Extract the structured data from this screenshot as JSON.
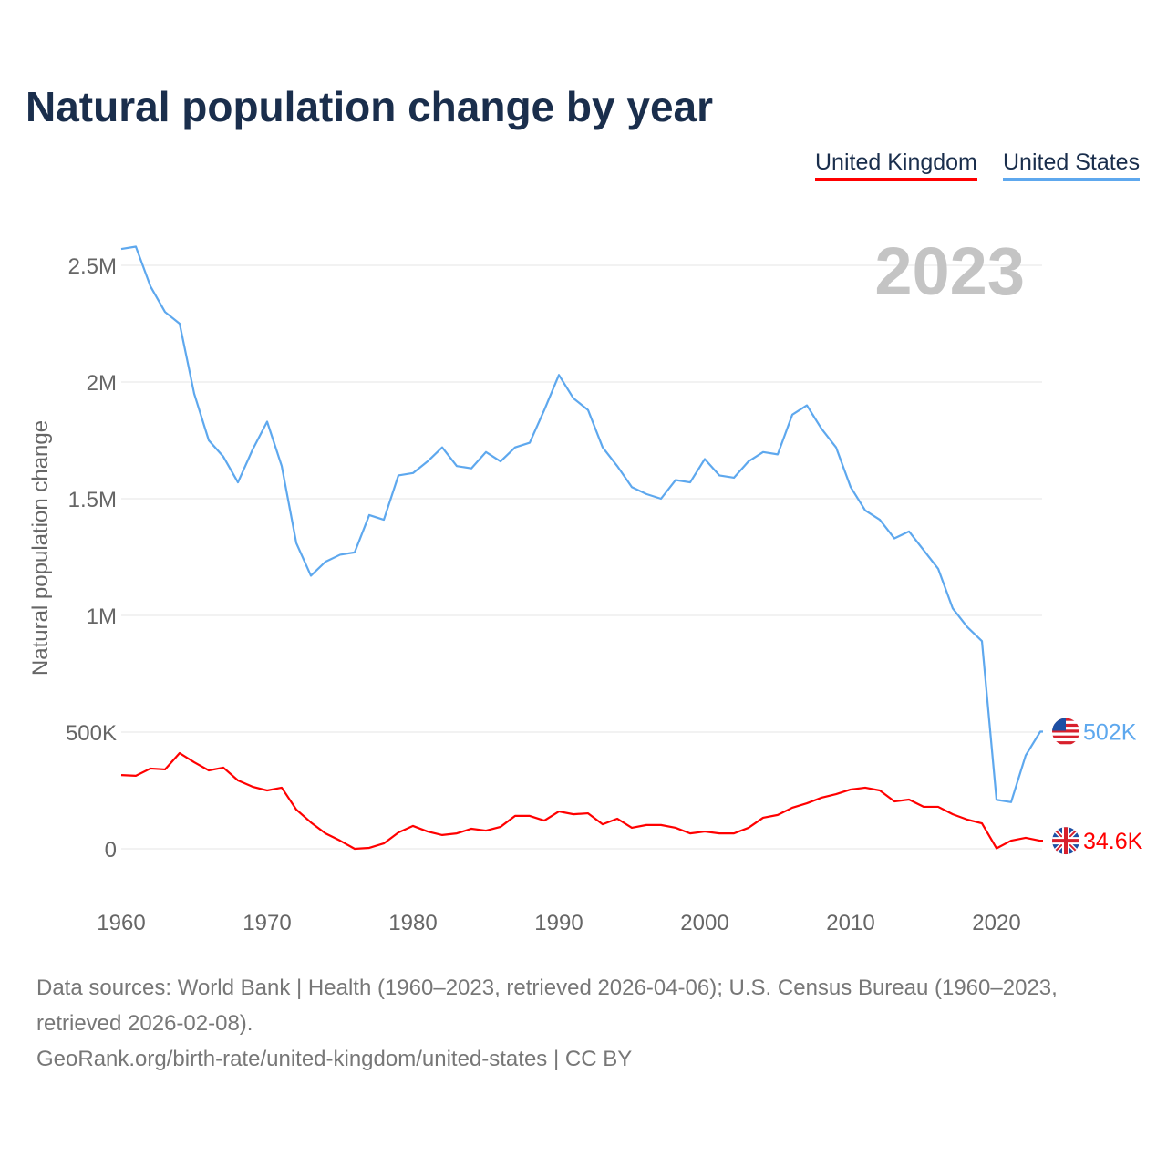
{
  "chart_data": {
    "type": "line",
    "title": "Natural population change by year",
    "xlabel": "",
    "ylabel": "Natural population change",
    "xlim": [
      1960,
      2023
    ],
    "ylim": [
      0,
      2600000
    ],
    "x_ticks": [
      1960,
      1970,
      1980,
      1990,
      2000,
      2010,
      2020
    ],
    "x_tick_labels": [
      "1960",
      "1970",
      "1980",
      "1990",
      "2000",
      "2010",
      "2020"
    ],
    "y_ticks": [
      0,
      500000,
      1000000,
      1500000,
      2000000,
      2500000
    ],
    "y_tick_labels": [
      "0",
      "500K",
      "1M",
      "1.5M",
      "2M",
      "2.5M"
    ],
    "grid": true,
    "legend_position": "top-right",
    "year_watermark": "2023",
    "x": [
      1960,
      1961,
      1962,
      1963,
      1964,
      1965,
      1966,
      1967,
      1968,
      1969,
      1970,
      1971,
      1972,
      1973,
      1974,
      1975,
      1976,
      1977,
      1978,
      1979,
      1980,
      1981,
      1982,
      1983,
      1984,
      1985,
      1986,
      1987,
      1988,
      1989,
      1990,
      1991,
      1992,
      1993,
      1994,
      1995,
      1996,
      1997,
      1998,
      1999,
      2000,
      2001,
      2002,
      2003,
      2004,
      2005,
      2006,
      2007,
      2008,
      2009,
      2010,
      2011,
      2012,
      2013,
      2014,
      2015,
      2016,
      2017,
      2018,
      2019,
      2020,
      2021,
      2022,
      2023
    ],
    "series": [
      {
        "name": "United Kingdom",
        "color": "#ff0000",
        "end_label": "34.6K",
        "flag": "uk-flag-icon",
        "values": [
          316000,
          313000,
          344000,
          340000,
          410000,
          371000,
          336000,
          348000,
          293000,
          266000,
          250000,
          262000,
          168000,
          113000,
          66000,
          35000,
          0,
          4000,
          23000,
          70000,
          98000,
          74000,
          59000,
          66000,
          86000,
          78000,
          94000,
          141000,
          141000,
          121000,
          160000,
          148000,
          152000,
          105000,
          129000,
          90000,
          102000,
          102000,
          90000,
          66000,
          74000,
          66000,
          66000,
          90000,
          133000,
          145000,
          176000,
          195000,
          219000,
          234000,
          254000,
          262000,
          250000,
          203000,
          211000,
          180000,
          180000,
          148000,
          125000,
          109000,
          2000,
          35000,
          47000,
          34600
        ]
      },
      {
        "name": "United States",
        "color": "#5ea8ee",
        "end_label": "502K",
        "flag": "us-flag-icon",
        "values": [
          2570000,
          2580000,
          2410000,
          2300000,
          2250000,
          1950000,
          1750000,
          1680000,
          1570000,
          1710000,
          1830000,
          1640000,
          1310000,
          1170000,
          1230000,
          1260000,
          1270000,
          1430000,
          1410000,
          1600000,
          1610000,
          1660000,
          1720000,
          1640000,
          1630000,
          1700000,
          1660000,
          1720000,
          1740000,
          1880000,
          2030000,
          1930000,
          1880000,
          1720000,
          1640000,
          1550000,
          1520000,
          1500000,
          1580000,
          1570000,
          1670000,
          1600000,
          1590000,
          1660000,
          1700000,
          1690000,
          1860000,
          1900000,
          1800000,
          1720000,
          1550000,
          1450000,
          1410000,
          1330000,
          1360000,
          1280000,
          1200000,
          1030000,
          950000,
          890000,
          210000,
          200000,
          400000,
          502000
        ]
      }
    ]
  },
  "footer": {
    "sources": "Data sources: World Bank | Health (1960–2023, retrieved 2026-04-06); U.S. Census Bureau (1960–2023, retrieved 2026-02-08).",
    "link": "GeoRank.org/birth-rate/united-kingdom/united-states | CC BY"
  }
}
